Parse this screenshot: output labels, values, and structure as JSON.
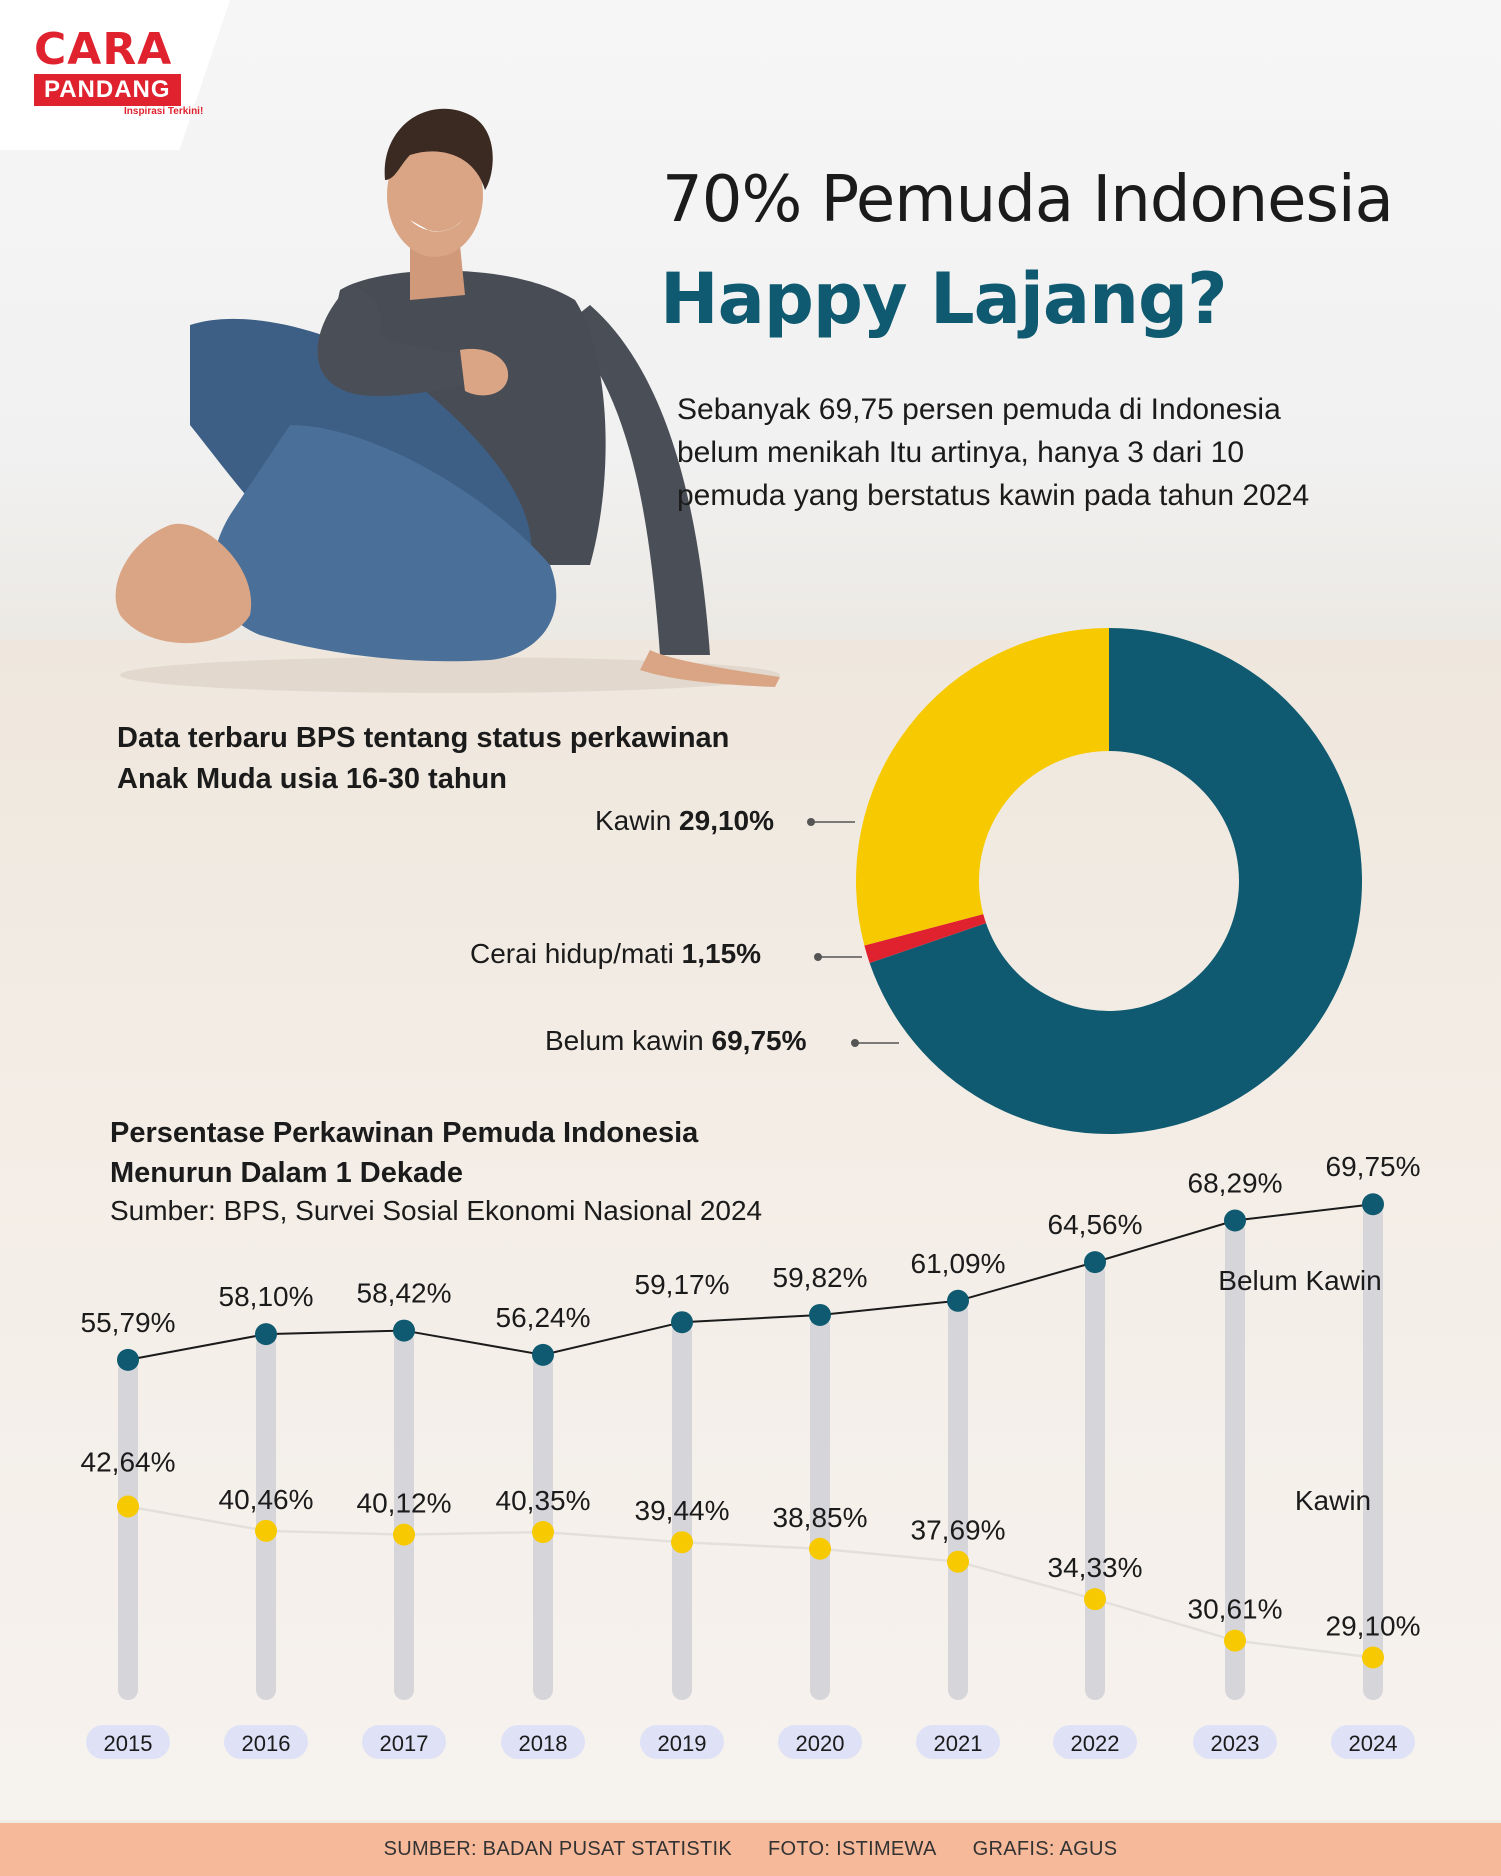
{
  "brand": {
    "name_top": "CARA",
    "name_bottom": "PANDANG",
    "tagline": "Inspirasi Terkini!",
    "color": "#e0222f"
  },
  "headline": {
    "line1": "70% Pemuda Indonesia",
    "line2": "Happy Lajang?"
  },
  "intro": "Sebanyak 69,75 persen pemuda di Indonesia belum menikah Itu artinya, hanya 3 dari 10 pemuda yang berstatus kawin pada tahun 2024",
  "donut_section": {
    "title_line1": "Data terbaru BPS tentang status perkawinan",
    "title_line2": "Anak Muda usia 16-30 tahun",
    "labels": [
      {
        "name": "Kawin",
        "value": "29,10%"
      },
      {
        "name": "Cerai hidup/mati",
        "value": "1,15%"
      },
      {
        "name": "Belum kawin",
        "value": "69,75%"
      }
    ]
  },
  "line_section": {
    "title_line1": "Persentase Perkawinan Pemuda Indonesia",
    "title_line2": "Menurun Dalam 1 Dekade",
    "source": "Sumber: BPS, Survei Sosial Ekonomi Nasional 2024",
    "series_label_belum": "Belum Kawin",
    "series_label_kawin": "Kawin"
  },
  "footer": {
    "source": "SUMBER: BADAN PUSAT STATISTIK",
    "photo": "FOTO: ISTIMEWA",
    "graphic": "GRAFIS: AGUS"
  },
  "chart_data": [
    {
      "type": "pie",
      "title": "Data terbaru BPS tentang status perkawinan Anak Muda usia 16-30 tahun",
      "categories": [
        "Belum kawin",
        "Cerai hidup/mati",
        "Kawin"
      ],
      "values": [
        69.75,
        1.15,
        29.1
      ],
      "colors": [
        "#0f5a70",
        "#e0222f",
        "#f7c900"
      ]
    },
    {
      "type": "line",
      "title": "Persentase Perkawinan Pemuda Indonesia Menurun Dalam 1 Dekade",
      "categories": [
        "2015",
        "2016",
        "2017",
        "2018",
        "2019",
        "2020",
        "2021",
        "2022",
        "2023",
        "2024"
      ],
      "series": [
        {
          "name": "Belum Kawin",
          "values": [
            55.79,
            58.1,
            58.42,
            56.24,
            59.17,
            59.82,
            61.09,
            64.56,
            68.29,
            69.75
          ],
          "labels": [
            "55,79%",
            "58,10%",
            "58,42%",
            "56,24%",
            "59,17%",
            "59,82%",
            "61,09%",
            "64,56%",
            "68,29%",
            "69,75%"
          ],
          "color": "#0f5a70"
        },
        {
          "name": "Kawin",
          "values": [
            42.64,
            40.46,
            40.12,
            40.35,
            39.44,
            38.85,
            37.69,
            34.33,
            30.61,
            29.1
          ],
          "labels": [
            "42,64%",
            "40,46%",
            "40,12%",
            "40,35%",
            "39,44%",
            "38,85%",
            "37,69%",
            "34,33%",
            "30,61%",
            "29,10%"
          ],
          "color": "#f7c900"
        }
      ]
    }
  ]
}
